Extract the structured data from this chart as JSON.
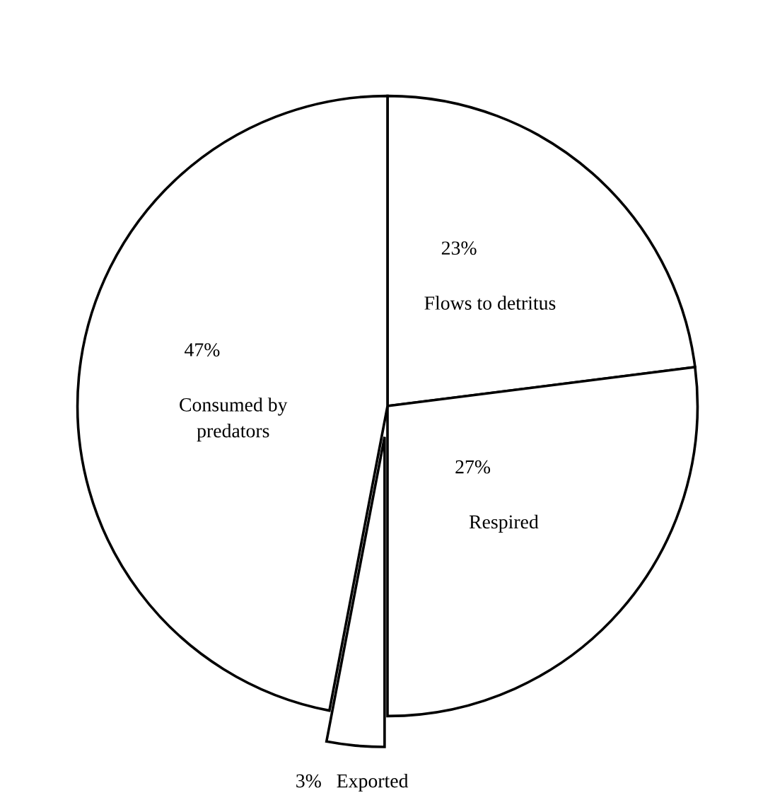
{
  "chart_data": {
    "type": "pie",
    "categories": [
      "Flows to detritus",
      "Respired",
      "Exported",
      "Consumed by\npredators"
    ],
    "values": [
      23,
      27,
      3,
      47
    ],
    "value_labels": [
      "23%",
      "27%",
      "3%",
      "47%"
    ],
    "colors": [
      "#ffffff",
      "#ffffff",
      "#ffffff",
      "#ffffff"
    ],
    "legend": false
  }
}
